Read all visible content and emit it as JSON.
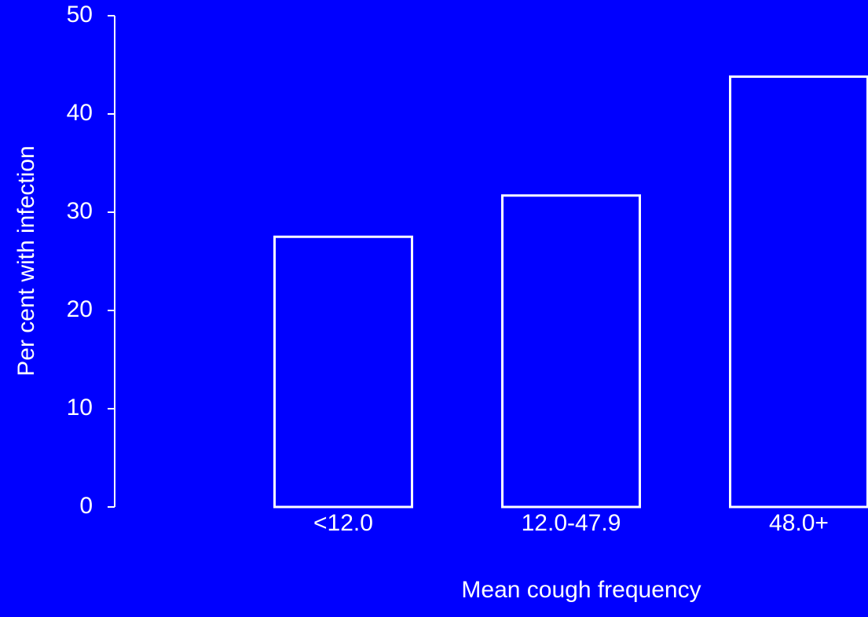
{
  "chart_data": {
    "type": "bar",
    "x_label": "Mean cough frequency",
    "y_label": "Per cent with infection",
    "categories": [
      "<12.0",
      "12.0-47.9",
      "48.0+"
    ],
    "values": [
      27.5,
      31.7,
      43.8
    ],
    "color": "#0000ff",
    "ylim": [
      0,
      50
    ],
    "yticks": [
      0,
      10,
      20,
      30,
      40,
      50
    ]
  }
}
